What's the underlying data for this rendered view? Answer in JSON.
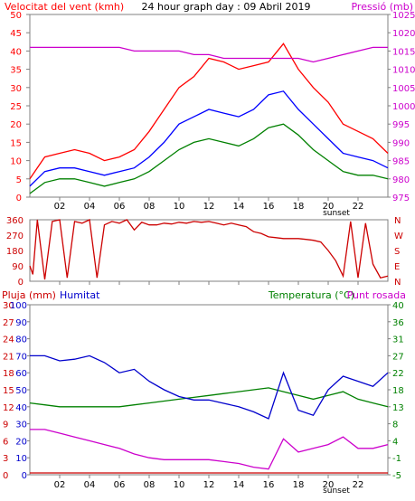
{
  "chart_data": [
    {
      "type": "line",
      "title": "24 hour graph day : 09 Abril 2019",
      "left_axis_title": "Velocitat del vent (kmh)",
      "right_axis_title": "Pressió (mb)",
      "x_ticks": [
        "02",
        "04",
        "06",
        "08",
        "10",
        "12",
        "14",
        "16",
        "18",
        "20",
        "22"
      ],
      "sunset_label": "sunset",
      "left_ticks": [
        0,
        5,
        10,
        15,
        20,
        25,
        30,
        35,
        40,
        45,
        50
      ],
      "right_ticks": [
        975,
        980,
        985,
        990,
        995,
        1000,
        1005,
        1010,
        1015,
        1020,
        1025
      ],
      "ylim": [
        0,
        50
      ],
      "y2lim": [
        975,
        1025
      ],
      "x": [
        0,
        1,
        2,
        3,
        4,
        5,
        6,
        7,
        8,
        9,
        10,
        11,
        12,
        13,
        14,
        15,
        16,
        17,
        18,
        19,
        20,
        21,
        22,
        23,
        24
      ],
      "colors": {
        "gust": "#ff0000",
        "speed": "#0000ff",
        "low": "#008000",
        "pressure": "#cc00cc"
      },
      "series": [
        {
          "axis": "left",
          "color_key": "gust",
          "values": [
            5,
            11,
            12,
            13,
            12,
            10,
            11,
            13,
            18,
            24,
            30,
            33,
            38,
            37,
            35,
            36,
            37,
            42,
            35,
            30,
            26,
            20,
            18,
            16,
            12
          ]
        },
        {
          "axis": "left",
          "color_key": "speed",
          "values": [
            3,
            7,
            8,
            8,
            7,
            6,
            7,
            8,
            11,
            15,
            20,
            22,
            24,
            23,
            22,
            24,
            28,
            29,
            24,
            20,
            16,
            12,
            11,
            10,
            8
          ]
        },
        {
          "axis": "left",
          "color_key": "low",
          "values": [
            1,
            4,
            5,
            5,
            4,
            3,
            4,
            5,
            7,
            10,
            13,
            15,
            16,
            15,
            14,
            16,
            19,
            20,
            17,
            13,
            10,
            7,
            6,
            6,
            5
          ]
        },
        {
          "axis": "right",
          "color_key": "pressure",
          "values": [
            1016,
            1016,
            1016,
            1016,
            1016,
            1016,
            1016,
            1015,
            1015,
            1015,
            1015,
            1014,
            1014,
            1013,
            1013,
            1013,
            1013,
            1013,
            1013,
            1012,
            1013,
            1014,
            1015,
            1016,
            1016
          ]
        }
      ]
    },
    {
      "type": "scatter",
      "direction_ticks": [
        "360",
        "270",
        "180",
        "90",
        "0"
      ],
      "direction_letters": [
        "N",
        "W",
        "S",
        "E",
        "N"
      ],
      "x_ticks_hours": [
        2,
        4,
        6,
        8,
        10,
        12,
        14,
        16,
        18,
        20,
        22
      ],
      "ylim": [
        0,
        360
      ],
      "color": "#cc0000",
      "x": [
        0,
        0.2,
        0.5,
        1,
        1.5,
        2,
        2.5,
        3,
        3.5,
        4,
        4.5,
        5,
        5.5,
        6,
        6.5,
        7,
        7.5,
        8,
        8.5,
        9,
        9.5,
        10,
        10.5,
        11,
        11.5,
        12,
        12.5,
        13,
        13.5,
        14,
        14.5,
        15,
        15.5,
        16,
        16.5,
        17,
        17.5,
        18,
        18.5,
        19,
        19.5,
        20,
        20.5,
        21,
        21.5,
        22,
        22.5,
        23,
        23.5,
        24
      ],
      "values": [
        90,
        40,
        360,
        10,
        350,
        360,
        20,
        350,
        340,
        360,
        20,
        330,
        350,
        340,
        360,
        300,
        345,
        330,
        330,
        340,
        335,
        345,
        340,
        350,
        345,
        350,
        340,
        330,
        340,
        330,
        320,
        290,
        280,
        260,
        255,
        250,
        250,
        250,
        245,
        240,
        230,
        180,
        120,
        30,
        350,
        20,
        340,
        100,
        20,
        30
      ]
    },
    {
      "type": "line",
      "left_title_1": "Pluja (mm)",
      "left_title_2": "Humitat",
      "right_title_1": "Temperatura (°C)",
      "right_title_2": "Punt rosada",
      "rain_ticks": [
        0,
        3,
        6,
        9,
        12,
        15,
        18,
        21,
        24,
        27,
        30
      ],
      "humidity_ticks": [
        0,
        10,
        20,
        30,
        40,
        50,
        60,
        70,
        80,
        90,
        100
      ],
      "temp_ticks": [
        "-5",
        "-1",
        "4",
        "8",
        "13",
        "18",
        "22",
        "27",
        "31",
        "36",
        "40"
      ],
      "sunset_label": "sunset",
      "x_ticks": [
        "02",
        "04",
        "06",
        "08",
        "10",
        "12",
        "14",
        "16",
        "18",
        "20",
        "22"
      ],
      "ylim_temp": [
        -5,
        40
      ],
      "ylim_humidity": [
        0,
        100
      ],
      "colors": {
        "temperature": "#008000",
        "humidity": "#0000cc",
        "dewpoint": "#cc00cc",
        "rain": "#cc0000"
      },
      "x": [
        0,
        1,
        2,
        3,
        4,
        5,
        6,
        7,
        8,
        9,
        10,
        11,
        12,
        13,
        14,
        15,
        16,
        17,
        18,
        19,
        20,
        21,
        22,
        23,
        24
      ],
      "series": [
        {
          "color_key": "temperature",
          "axis": "temp",
          "values": [
            14,
            13.5,
            13,
            13,
            13,
            13,
            13,
            13.5,
            14,
            14.5,
            15,
            15.5,
            16,
            16.5,
            17,
            17.5,
            18,
            17,
            16,
            15,
            16,
            17,
            15,
            14,
            13
          ]
        },
        {
          "color_key": "humidity",
          "axis": "humidity",
          "values": [
            70,
            70,
            67,
            68,
            70,
            66,
            60,
            62,
            55,
            50,
            46,
            44,
            44,
            42,
            40,
            37,
            33,
            60,
            38,
            35,
            50,
            58,
            55,
            52,
            60
          ]
        },
        {
          "color_key": "dewpoint",
          "axis": "temp",
          "values": [
            7,
            7,
            6,
            5,
            4,
            3,
            2,
            0.5,
            -0.5,
            -1,
            -1,
            -1,
            -1,
            -1.5,
            -2,
            -3,
            -3.5,
            4.5,
            1,
            2,
            3,
            5,
            2,
            2,
            3
          ]
        },
        {
          "color_key": "rain",
          "axis": "rain",
          "values": [
            0,
            0,
            0,
            0,
            0,
            0,
            0,
            0,
            0,
            0,
            0,
            0,
            0,
            0,
            0,
            0,
            0,
            0,
            0,
            0,
            0,
            0,
            0,
            0,
            0
          ]
        }
      ]
    }
  ]
}
